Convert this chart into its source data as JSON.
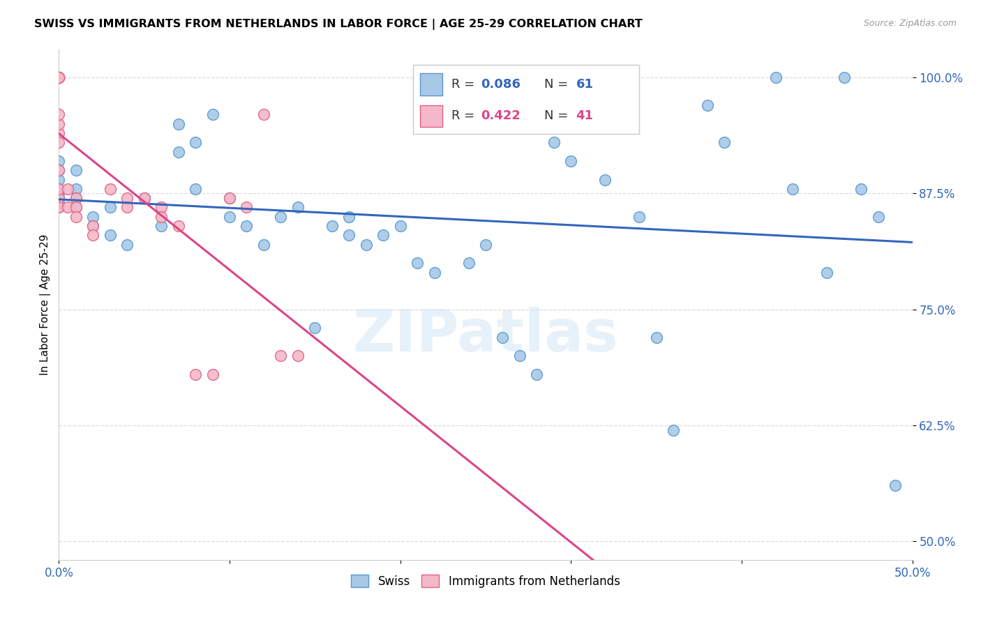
{
  "title": "SWISS VS IMMIGRANTS FROM NETHERLANDS IN LABOR FORCE | AGE 25-29 CORRELATION CHART",
  "source": "Source: ZipAtlas.com",
  "ylabel": "In Labor Force | Age 25-29",
  "xlim": [
    0.0,
    0.5
  ],
  "ylim": [
    0.48,
    1.03
  ],
  "xticks": [
    0.0,
    0.1,
    0.2,
    0.3,
    0.4,
    0.5
  ],
  "xticklabels": [
    "0.0%",
    "",
    "",
    "",
    "",
    "50.0%"
  ],
  "yticks": [
    0.5,
    0.625,
    0.75,
    0.875,
    1.0
  ],
  "yticklabels": [
    "50.0%",
    "62.5%",
    "75.0%",
    "87.5%",
    "100.0%"
  ],
  "blue_R": 0.086,
  "blue_N": 61,
  "pink_R": 0.422,
  "pink_N": 41,
  "blue_color": "#a8c8e8",
  "pink_color": "#f4b8c8",
  "blue_edge_color": "#5599cc",
  "pink_edge_color": "#e06080",
  "blue_line_color": "#3366bb",
  "pink_line_color": "#dd4488",
  "watermark": "ZIPatlas",
  "blue_scatter_x": [
    0.0,
    0.0,
    0.0,
    0.0,
    0.0,
    0.0,
    0.0,
    0.0,
    0.01,
    0.01,
    0.01,
    0.01,
    0.02,
    0.02,
    0.03,
    0.03,
    0.04,
    0.05,
    0.06,
    0.07,
    0.07,
    0.08,
    0.08,
    0.09,
    0.1,
    0.1,
    0.11,
    0.12,
    0.13,
    0.14,
    0.15,
    0.16,
    0.17,
    0.17,
    0.18,
    0.19,
    0.2,
    0.21,
    0.22,
    0.23,
    0.24,
    0.25,
    0.26,
    0.27,
    0.28,
    0.29,
    0.3,
    0.31,
    0.32,
    0.34,
    0.35,
    0.36,
    0.38,
    0.39,
    0.42,
    0.43,
    0.45,
    0.46,
    0.47,
    0.48,
    0.49
  ],
  "blue_scatter_y": [
    0.875,
    0.88,
    0.87,
    0.86,
    0.89,
    0.91,
    0.9,
    0.865,
    0.88,
    0.87,
    0.86,
    0.9,
    0.85,
    0.84,
    0.86,
    0.83,
    0.82,
    0.87,
    0.84,
    0.95,
    0.92,
    0.93,
    0.88,
    0.96,
    0.87,
    0.85,
    0.84,
    0.82,
    0.85,
    0.86,
    0.73,
    0.84,
    0.83,
    0.85,
    0.82,
    0.83,
    0.84,
    0.8,
    0.79,
    0.96,
    0.8,
    0.82,
    0.72,
    0.7,
    0.68,
    0.93,
    0.91,
    1.0,
    0.89,
    0.85,
    0.72,
    0.62,
    0.97,
    0.93,
    1.0,
    0.88,
    0.79,
    1.0,
    0.88,
    0.85,
    0.56
  ],
  "pink_scatter_x": [
    0.0,
    0.0,
    0.0,
    0.0,
    0.0,
    0.0,
    0.0,
    0.0,
    0.0,
    0.0,
    0.0,
    0.0,
    0.0,
    0.0,
    0.0,
    0.0,
    0.0,
    0.0,
    0.0,
    0.0,
    0.005,
    0.005,
    0.01,
    0.01,
    0.01,
    0.02,
    0.02,
    0.03,
    0.04,
    0.04,
    0.05,
    0.06,
    0.06,
    0.07,
    0.08,
    0.09,
    0.1,
    0.11,
    0.12,
    0.13,
    0.14
  ],
  "pink_scatter_y": [
    1.0,
    1.0,
    1.0,
    1.0,
    1.0,
    1.0,
    1.0,
    1.0,
    1.0,
    1.0,
    1.0,
    1.0,
    0.94,
    0.9,
    0.87,
    0.93,
    0.95,
    0.96,
    0.88,
    0.86,
    0.88,
    0.86,
    0.87,
    0.86,
    0.85,
    0.84,
    0.83,
    0.88,
    0.87,
    0.86,
    0.87,
    0.86,
    0.85,
    0.84,
    0.68,
    0.68,
    0.87,
    0.86,
    0.96,
    0.7,
    0.7
  ]
}
